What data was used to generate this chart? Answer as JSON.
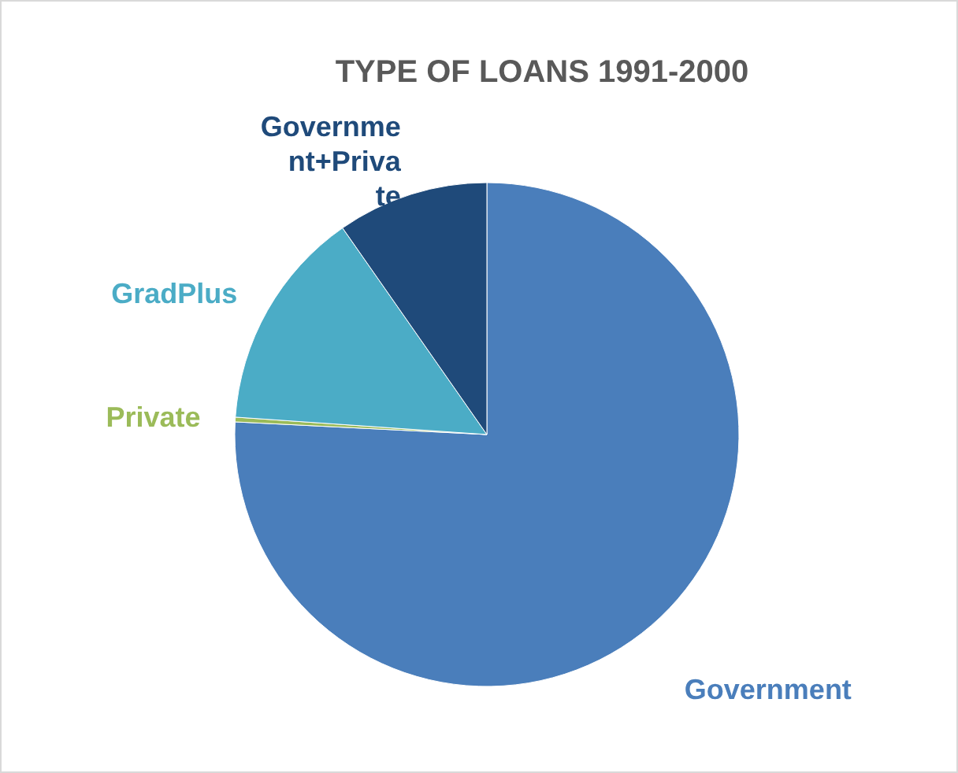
{
  "chart_data": {
    "type": "pie",
    "title": "TYPE OF LOANS 1991-2000",
    "categories": [
      "Government",
      "Private",
      "GradPlus",
      "Government+Private"
    ],
    "values": [
      75.8,
      0.3,
      14.2,
      9.7
    ],
    "colors": [
      "#4a7ebb",
      "#9bbb59",
      "#4bacc6",
      "#1f4a7a"
    ]
  }
}
